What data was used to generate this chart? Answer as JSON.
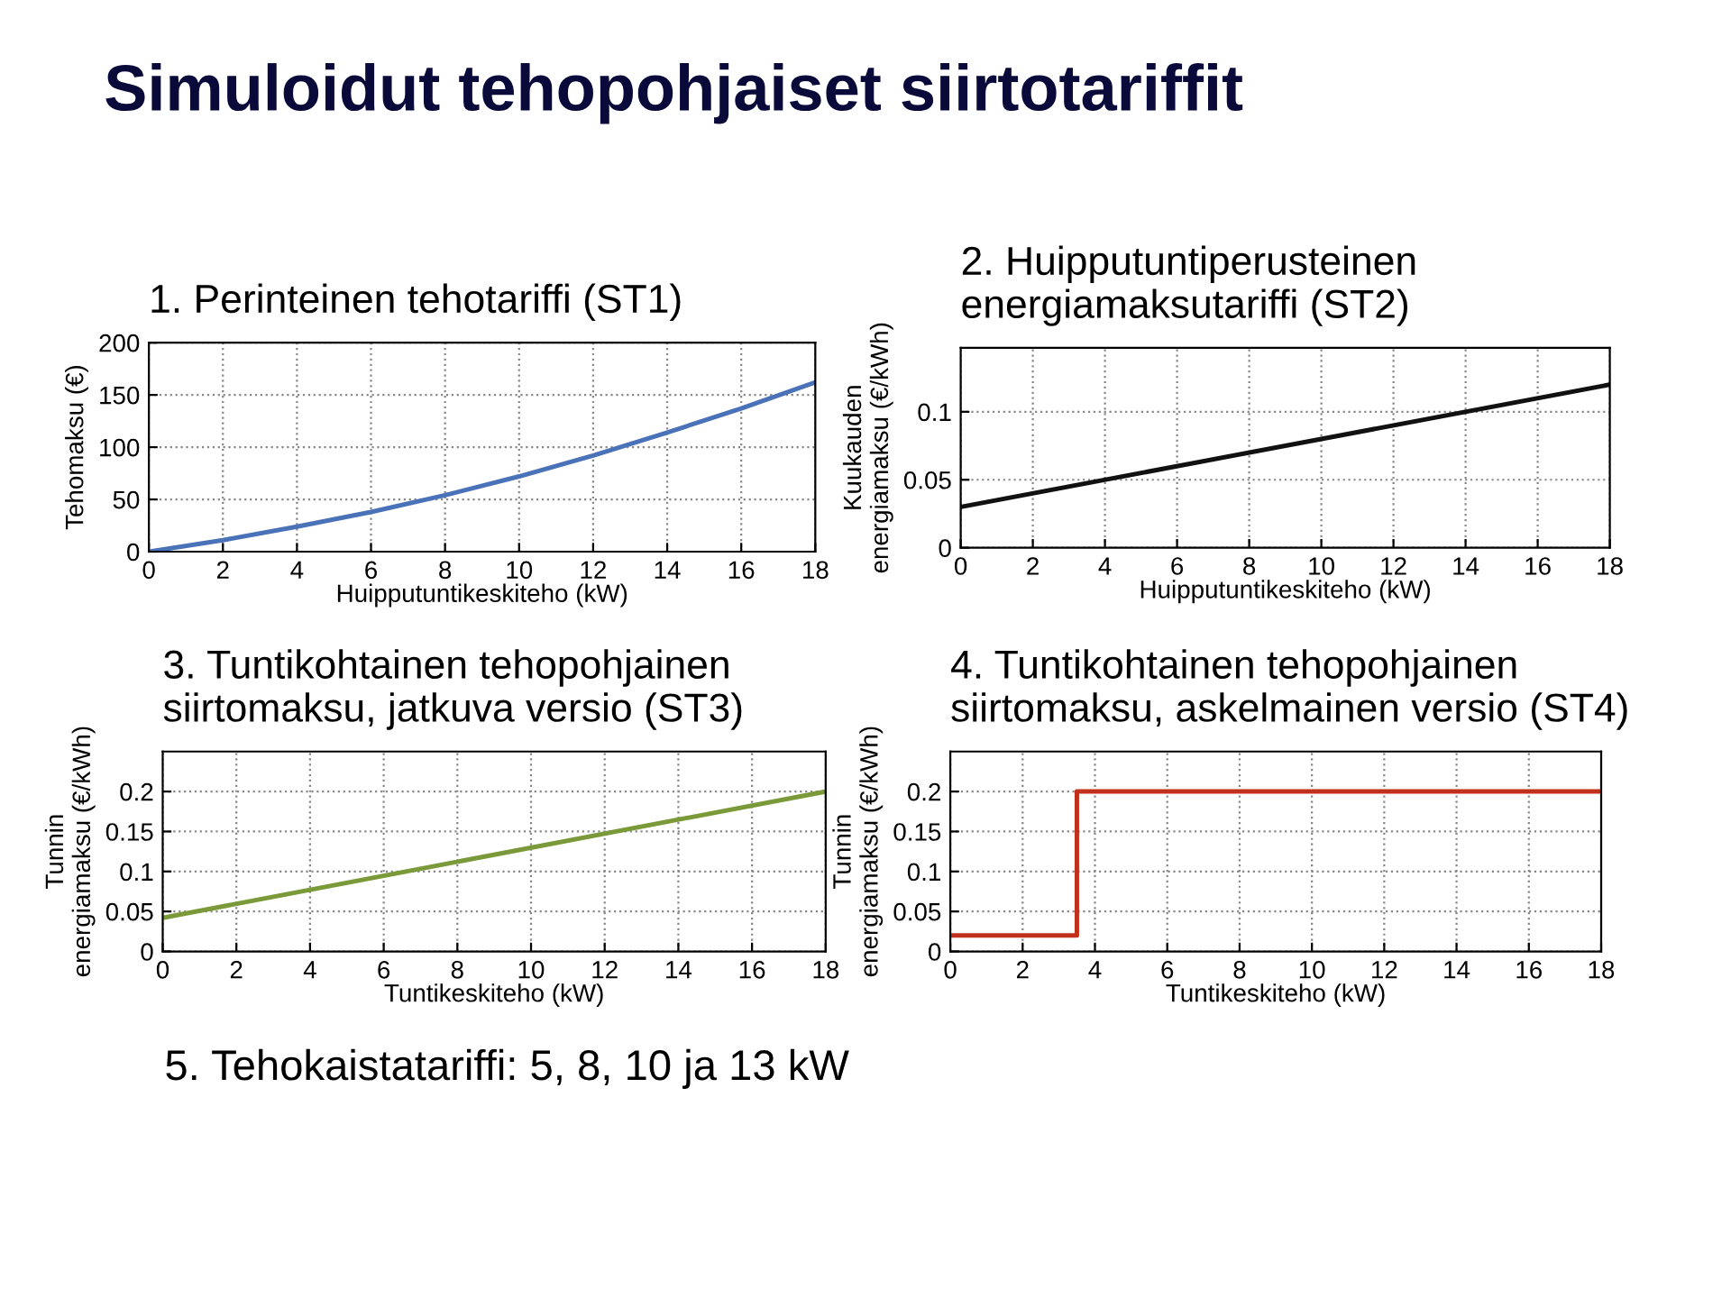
{
  "chart_data": [
    {
      "type": "line",
      "title": "1. Perinteinen tehotariffi (ST1)",
      "xlabel": "Huipputuntikeskiteho (kW)",
      "ylabel": "Tehomaksu (€)",
      "annotations": [
        "Simuloidut tehopohjaiset siirtotariffit",
        "5. Tehokaistatariffi: 5, 8, 10 ja 13 kW"
      ],
      "x": [
        0,
        2,
        4,
        6,
        8,
        10,
        12,
        14,
        16,
        18
      ],
      "series": [
        {
          "color": "#4a72b8",
          "values": [
            0,
            11,
            24,
            38,
            54,
            72,
            92,
            114,
            137,
            162
          ]
        }
      ],
      "xlim": [
        0,
        18
      ],
      "xticks": [
        0,
        2,
        4,
        6,
        8,
        10,
        12,
        14,
        16,
        18
      ],
      "ylim": [
        0,
        200
      ],
      "yticks": [
        0,
        50,
        100,
        150,
        200
      ],
      "grid": true,
      "line_style": "solid"
    },
    {
      "type": "line",
      "title": "2. Huipputuntiperusteinen\nenergiamaksutariffi (ST2)",
      "xlabel": "Huipputuntikeskiteho (kW)",
      "ylabel": "Kuukauden\nenergiamaksu (€/kWh)",
      "x": [
        0,
        18
      ],
      "series": [
        {
          "color": "#111111",
          "values": [
            0.03,
            0.12
          ]
        }
      ],
      "xlim": [
        0,
        18
      ],
      "xticks": [
        0,
        2,
        4,
        6,
        8,
        10,
        12,
        14,
        16,
        18
      ],
      "ylim": [
        0,
        0.147
      ],
      "yticks": [
        0,
        0.05,
        0.1
      ],
      "grid": true,
      "line_style": "solid"
    },
    {
      "type": "line",
      "title": "3. Tuntikohtainen tehopohjainen\nsiirtomaksu, jatkuva versio (ST3)",
      "xlabel": "Tuntikeskiteho (kW)",
      "ylabel": "Tunnin\nenergiamaksu (€/kWh)",
      "x": [
        0,
        18
      ],
      "series": [
        {
          "color": "#7a9a3a",
          "values": [
            0.042,
            0.2
          ]
        }
      ],
      "xlim": [
        0,
        18
      ],
      "xticks": [
        0,
        2,
        4,
        6,
        8,
        10,
        12,
        14,
        16,
        18
      ],
      "ylim": [
        0,
        0.25
      ],
      "yticks": [
        0,
        0.05,
        0.1,
        0.15,
        0.2
      ],
      "grid": true,
      "line_style": "solid"
    },
    {
      "type": "step",
      "title": "4. Tuntikohtainen tehopohjainen\nsiirtomaksu, askelmainen versio (ST4)",
      "xlabel": "Tuntikeskiteho (kW)",
      "ylabel": "Tunnin\nenergiamaksu (€/kWh)",
      "x": [
        0,
        3.5,
        18
      ],
      "series": [
        {
          "color": "#c0301a",
          "values": [
            0.02,
            0.2,
            0.2
          ]
        }
      ],
      "xlim": [
        0,
        18
      ],
      "xticks": [
        0,
        2,
        4,
        6,
        8,
        10,
        12,
        14,
        16,
        18
      ],
      "ylim": [
        0,
        0.25
      ],
      "yticks": [
        0,
        0.05,
        0.1,
        0.15,
        0.2
      ],
      "grid": true,
      "line_style": "solid"
    }
  ]
}
